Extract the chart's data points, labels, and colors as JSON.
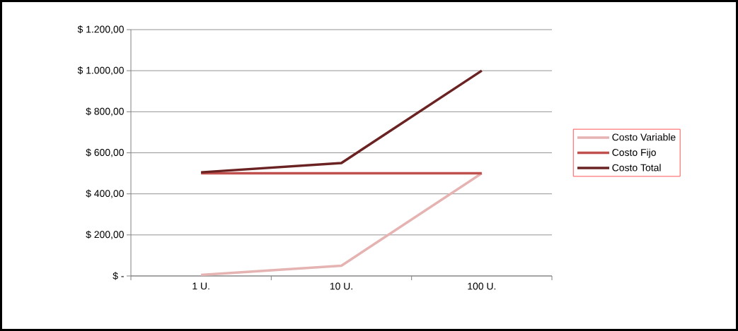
{
  "chart_data": {
    "type": "line",
    "categories": [
      "1 U.",
      "10 U.",
      "100 U."
    ],
    "series": [
      {
        "name": "Costo Variable",
        "color": "#e6b3b3",
        "values": [
          5,
          50,
          500
        ]
      },
      {
        "name": "Costo Fijo",
        "color": "#c0504d",
        "values": [
          500,
          500,
          500
        ]
      },
      {
        "name": "Costo Total",
        "color": "#6b2222",
        "values": [
          505,
          550,
          1000
        ]
      }
    ],
    "ylim": [
      0,
      1200
    ],
    "yticks": [
      {
        "value": 0,
        "label": "$ -"
      },
      {
        "value": 200,
        "label": "$ 200,00"
      },
      {
        "value": 400,
        "label": "$ 400,00"
      },
      {
        "value": 600,
        "label": "$ 600,00"
      },
      {
        "value": 800,
        "label": "$ 800,00"
      },
      {
        "value": 1000,
        "label": "$ 1.000,00"
      },
      {
        "value": 1200,
        "label": "$ 1.200,00"
      }
    ],
    "grid": "y",
    "legend": "right",
    "marker": "none",
    "line_style": "solid"
  }
}
